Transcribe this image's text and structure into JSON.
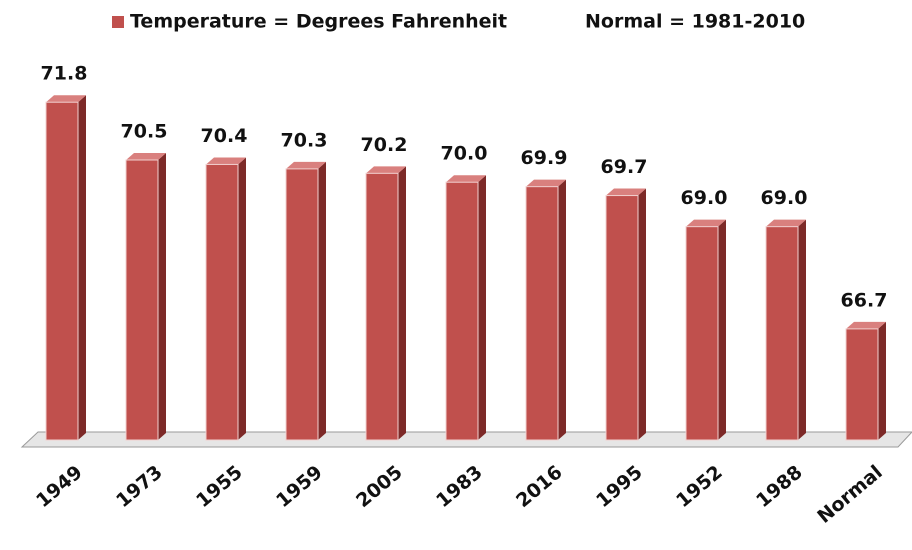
{
  "chart_data": {
    "type": "bar",
    "series": [
      {
        "name": "Temperature = Degrees Fahrenheit",
        "color": "#c0504d",
        "values": [
          71.8,
          70.5,
          70.4,
          70.3,
          70.2,
          70.0,
          69.9,
          69.7,
          69.0,
          69.0,
          66.7
        ],
        "value_labels": [
          "71.8",
          "70.5",
          "70.4",
          "70.3",
          "70.2",
          "70.0",
          "69.9",
          "69.7",
          "69.0",
          "69.0",
          "66.7"
        ]
      }
    ],
    "annotations": [
      "Normal = 1981-2010"
    ],
    "categories": [
      "1949",
      "1973",
      "1955",
      "1959",
      "2005",
      "1983",
      "2016",
      "1995",
      "1952",
      "1988",
      "Normal"
    ],
    "ylim": [
      64.2,
      74.1
    ]
  }
}
